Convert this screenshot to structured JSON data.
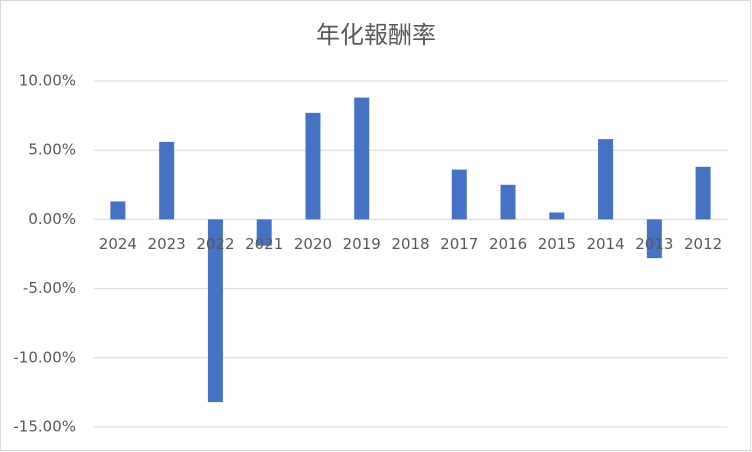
{
  "chart_data": {
    "type": "bar",
    "title": "年化報酬率",
    "categories": [
      "2024",
      "2023",
      "2022",
      "2021",
      "2020",
      "2019",
      "2018",
      "2017",
      "2016",
      "2015",
      "2014",
      "2013",
      "2012"
    ],
    "values": [
      1.3,
      5.6,
      -13.2,
      -1.9,
      7.7,
      8.8,
      0,
      3.6,
      2.5,
      0.5,
      5.8,
      -2.8,
      3.8
    ],
    "color": "#4472c4",
    "ylim": [
      -15,
      10
    ],
    "yticks": [
      {
        "value": -15,
        "label": "-15.00%"
      },
      {
        "value": -10,
        "label": "-10.00%"
      },
      {
        "value": -5,
        "label": "-5.00%"
      },
      {
        "value": 0,
        "label": "0.00%"
      },
      {
        "value": 5,
        "label": "5.00%"
      },
      {
        "value": 10,
        "label": "10.00%"
      }
    ],
    "grid": true
  }
}
